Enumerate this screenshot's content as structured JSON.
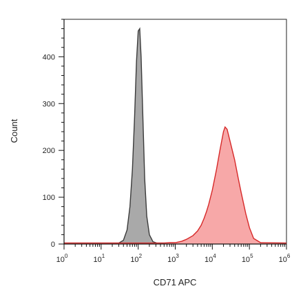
{
  "chart_data": {
    "type": "area",
    "xlabel": "CD71 APC",
    "ylabel": "Count",
    "xscale": "log",
    "xlim": [
      1,
      1000000
    ],
    "ylim": [
      0,
      480
    ],
    "x_tick_labels": [
      {
        "base": "10",
        "exp": "0",
        "value": 1
      },
      {
        "base": "10",
        "exp": "1",
        "value": 10
      },
      {
        "base": "10",
        "exp": "2",
        "value": 100
      },
      {
        "base": "10",
        "exp": "3",
        "value": 1000
      },
      {
        "base": "10",
        "exp": "4",
        "value": 10000
      },
      {
        "base": "10",
        "exp": "5",
        "value": 100000
      },
      {
        "base": "10",
        "exp": "6",
        "value": 1000000
      }
    ],
    "y_ticks": [
      0,
      100,
      200,
      300,
      400
    ],
    "grid": false,
    "legend": "none",
    "series": [
      {
        "color_fill": "#a9a9a9",
        "color_line": "#3a3a3a",
        "x": [
          1,
          30,
          40,
          50,
          60,
          70,
          80,
          90,
          100,
          110,
          120,
          135,
          150,
          170,
          200,
          250,
          320,
          1000,
          1000000
        ],
        "y": [
          2,
          2,
          8,
          30,
          80,
          160,
          270,
          390,
          455,
          460,
          400,
          260,
          140,
          60,
          20,
          5,
          2,
          2,
          2
        ]
      },
      {
        "color_fill": "#f7a8a8",
        "color_line": "#d62828",
        "x": [
          1,
          500,
          700,
          1000,
          1500,
          2000,
          3000,
          4000,
          5000,
          6000,
          7000,
          8000,
          10000,
          13000,
          16000,
          20000,
          22000,
          25000,
          30000,
          40000,
          50000,
          60000,
          80000,
          100000,
          130000,
          200000,
          1000000
        ],
        "y": [
          2,
          2,
          3,
          3,
          6,
          10,
          18,
          28,
          40,
          55,
          70,
          85,
          115,
          160,
          200,
          240,
          250,
          245,
          220,
          180,
          140,
          110,
          65,
          35,
          12,
          3,
          2
        ]
      }
    ]
  }
}
